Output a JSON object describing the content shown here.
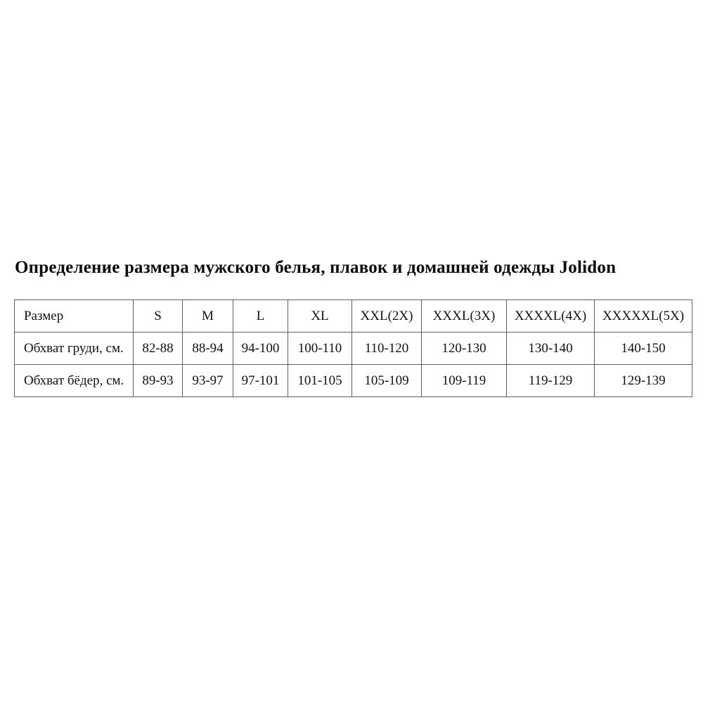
{
  "page": {
    "background": "#ffffff",
    "title": "Определение размера мужского белья, плавок и домашней одежды Jolidon"
  },
  "size_table": {
    "border_color": "#606060",
    "text_color": "#121212",
    "columns": [
      "Размер",
      "S",
      "M",
      "L",
      "XL",
      "XXL(2X)",
      "XXXL(3X)",
      "XXXXL(4X)",
      "XXXXXL(5X)"
    ],
    "rows": [
      {
        "label": "Обхват груди, см.",
        "values": [
          "82-88",
          "88-94",
          "94-100",
          "100-110",
          "110-120",
          "120-130",
          "130-140",
          "140-150"
        ]
      },
      {
        "label": "Обхват бёдер, см.",
        "values": [
          "89-93",
          "93-97",
          "97-101",
          "101-105",
          "105-109",
          "109-119",
          "119-129",
          "129-139"
        ]
      }
    ]
  }
}
